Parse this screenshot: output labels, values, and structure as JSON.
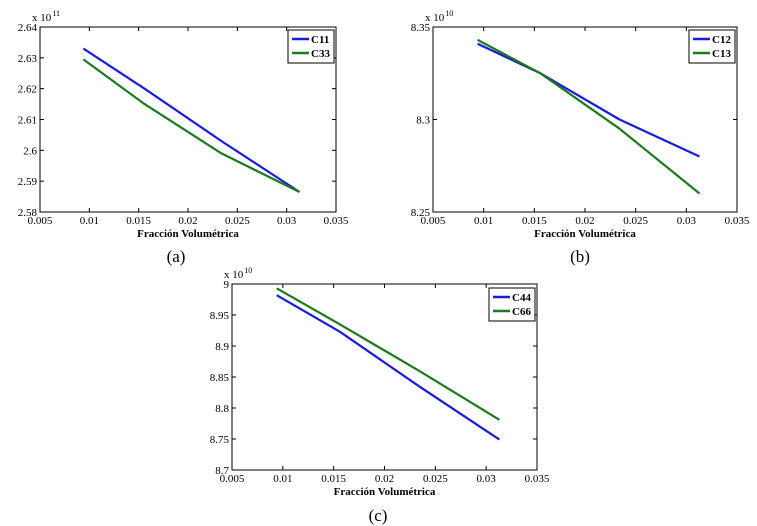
{
  "chart_data": [
    {
      "type": "line",
      "panel": "a",
      "caption": "(a)",
      "xlabel": "Fracción Volumétrica",
      "ylabel": "",
      "scale": {
        "base": "x 10",
        "exp": "11"
      },
      "xlim": [
        0.005,
        0.035
      ],
      "ylim": [
        2.58,
        2.64
      ],
      "xticks": [
        "0.005",
        "0.01",
        "0.015",
        "0.02",
        "0.025",
        "0.03",
        "0.035"
      ],
      "yticks": [
        "2.58",
        "2.59",
        "2.6",
        "2.61",
        "2.62",
        "2.63",
        "2.64"
      ],
      "legend_position": "top-right",
      "series": [
        {
          "name": "C11",
          "color": "#1a1adb",
          "x": [
            0.0094,
            0.0156,
            0.0234,
            0.0313
          ],
          "y": [
            2.633,
            2.62,
            2.603,
            2.5865
          ]
        },
        {
          "name": "C33",
          "color": "#1b7a1b",
          "x": [
            0.0094,
            0.0156,
            0.0234,
            0.0313
          ],
          "y": [
            2.6295,
            2.615,
            2.599,
            2.5865
          ]
        }
      ]
    },
    {
      "type": "line",
      "panel": "b",
      "caption": "(b)",
      "xlabel": "Fracción Volumétrica",
      "ylabel": "",
      "scale": {
        "base": "x 10",
        "exp": "10"
      },
      "xlim": [
        0.005,
        0.035
      ],
      "ylim": [
        8.25,
        8.35
      ],
      "xticks": [
        "0.005",
        "0.01",
        "0.015",
        "0.02",
        "0.025",
        "0.03",
        "0.035"
      ],
      "yticks": [
        "8.25",
        "8.3",
        "8.35"
      ],
      "legend_position": "top-right",
      "series": [
        {
          "name": "C12",
          "color": "#1a1adb",
          "x": [
            0.0094,
            0.0156,
            0.0234,
            0.0313
          ],
          "y": [
            8.341,
            8.325,
            8.3,
            8.28
          ]
        },
        {
          "name": "C13",
          "color": "#1b7a1b",
          "x": [
            0.0094,
            0.0156,
            0.0234,
            0.0313
          ],
          "y": [
            8.343,
            8.325,
            8.295,
            8.26
          ]
        }
      ]
    },
    {
      "type": "line",
      "panel": "c",
      "caption": "(c)",
      "xlabel": "Fracción Volumétrica",
      "ylabel": "",
      "scale": {
        "base": "x 10",
        "exp": "10"
      },
      "xlim": [
        0.005,
        0.035
      ],
      "ylim": [
        8.7,
        9.0
      ],
      "xticks": [
        "0.005",
        "0.01",
        "0.015",
        "0.02",
        "0.025",
        "0.03",
        "0.035"
      ],
      "yticks": [
        "8.7",
        "8.75",
        "8.8",
        "8.85",
        "8.9",
        "8.95",
        "9"
      ],
      "legend_position": "top-right",
      "series": [
        {
          "name": "C44",
          "color": "#1a1adb",
          "x": [
            0.0094,
            0.0156,
            0.0234,
            0.0313
          ],
          "y": [
            8.982,
            8.923,
            8.835,
            8.749
          ]
        },
        {
          "name": "C66",
          "color": "#1b7a1b",
          "x": [
            0.0094,
            0.0156,
            0.0234,
            0.0313
          ],
          "y": [
            8.993,
            8.935,
            8.86,
            8.781
          ]
        }
      ]
    }
  ]
}
